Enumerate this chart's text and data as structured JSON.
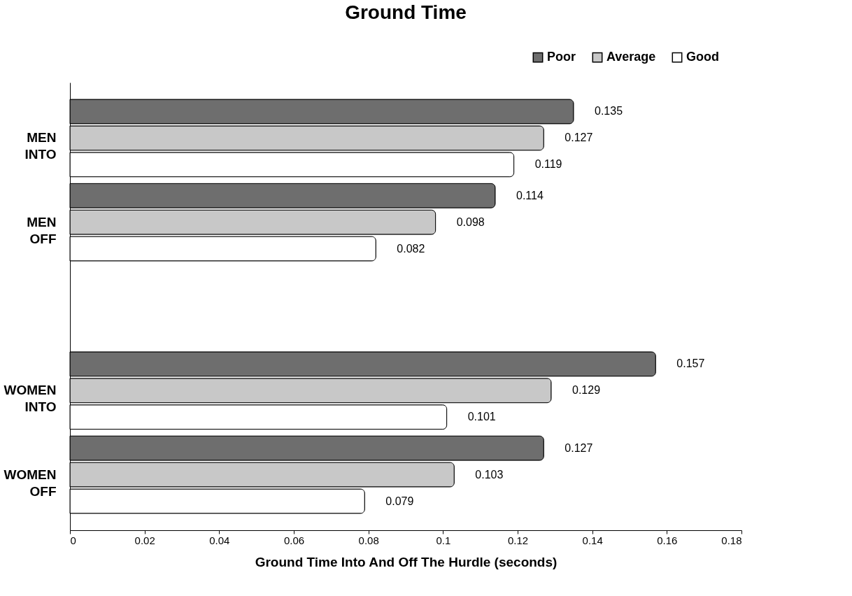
{
  "chart_data": {
    "type": "bar",
    "orientation": "horizontal",
    "title": "Ground Time",
    "xlabel": "Ground Time Into And Off The Hurdle (seconds)",
    "categories": [
      "MEN INTO",
      "MEN OFF",
      null,
      "WOMEN INTO",
      "WOMEN OFF"
    ],
    "series": [
      {
        "name": "Poor",
        "color": "#6e6e6e",
        "values": [
          0.135,
          0.114,
          null,
          0.157,
          0.127
        ]
      },
      {
        "name": "Average",
        "color": "#c8c8c8",
        "values": [
          0.127,
          0.098,
          null,
          0.129,
          0.103
        ]
      },
      {
        "name": "Good",
        "color": "#ffffff",
        "values": [
          0.119,
          0.082,
          null,
          0.101,
          0.079
        ]
      }
    ],
    "xlim": [
      0,
      0.18
    ],
    "xticks": [
      0,
      0.02,
      0.04,
      0.06,
      0.08,
      0.1,
      0.12,
      0.14,
      0.16,
      0.18
    ],
    "data_labels": true,
    "grid": false,
    "legend": "top right"
  }
}
